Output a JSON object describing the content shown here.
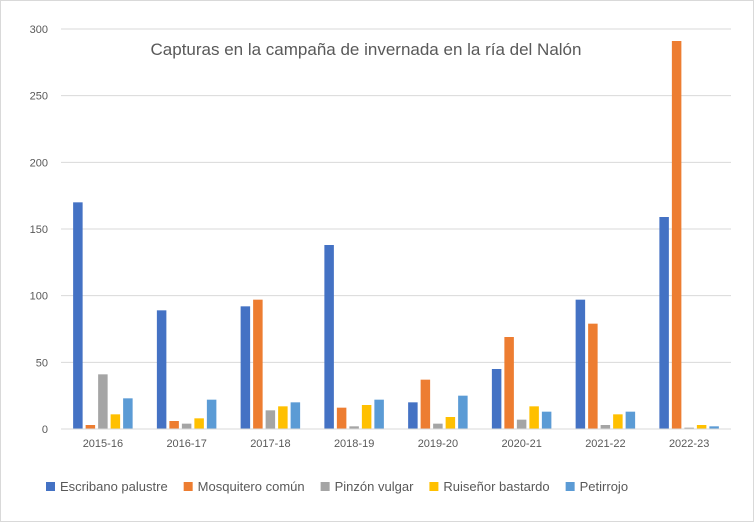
{
  "chart_data": {
    "type": "bar",
    "title": "Capturas en la campaña de invernada en la ría del Nalón",
    "xlabel": "",
    "ylabel": "",
    "ylim": [
      0,
      300
    ],
    "yticks": [
      0,
      50,
      100,
      150,
      200,
      250,
      300
    ],
    "grid": true,
    "legend_position": "bottom",
    "categories": [
      "2015-16",
      "2016-17",
      "2017-18",
      "2018-19",
      "2019-20",
      "2020-21",
      "2021-22",
      "2022-23"
    ],
    "series": [
      {
        "name": "Escribano palustre",
        "color": "#4472c4",
        "values": [
          170,
          89,
          92,
          138,
          20,
          45,
          97,
          159
        ]
      },
      {
        "name": "Mosquitero común",
        "color": "#ed7d31",
        "values": [
          3,
          6,
          97,
          16,
          37,
          69,
          79,
          291
        ]
      },
      {
        "name": "Pinzón vulgar",
        "color": "#a5a5a5",
        "values": [
          41,
          4,
          14,
          2,
          4,
          7,
          3,
          1
        ]
      },
      {
        "name": "Ruiseñor bastardo",
        "color": "#ffc000",
        "values": [
          11,
          8,
          17,
          18,
          9,
          17,
          11,
          3
        ]
      },
      {
        "name": "Petirrojo",
        "color": "#5b9bd5",
        "values": [
          23,
          22,
          20,
          22,
          25,
          13,
          13,
          2
        ]
      }
    ]
  }
}
